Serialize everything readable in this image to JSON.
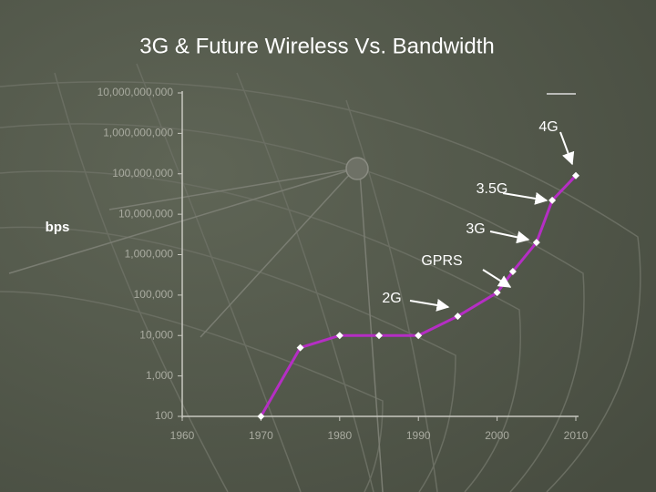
{
  "chart_data": {
    "type": "line",
    "title": "3G & Future Wireless Vs. Bandwidth",
    "ylabel": "bps",
    "x": [
      1970,
      1975,
      1980,
      1985,
      1990,
      1995,
      2000,
      2002,
      2005,
      2007,
      2010
    ],
    "series": [
      {
        "name": "Bandwidth",
        "color": "#b52ec4",
        "values": [
          100,
          5000,
          10000,
          10000,
          10000,
          30000,
          115000,
          384000,
          2000000,
          22000000,
          90000000
        ]
      }
    ],
    "xlim": [
      1960,
      2010
    ],
    "xticks": [
      1960,
      1970,
      1980,
      1990,
      2000,
      2010
    ],
    "ylim": [
      100,
      10000000000
    ],
    "log_scale": true,
    "yticks": [
      {
        "value": 100,
        "label": "100"
      },
      {
        "value": 1000,
        "label": "1,000"
      },
      {
        "value": 10000,
        "label": "10,000"
      },
      {
        "value": 100000,
        "label": "100,000"
      },
      {
        "value": 1000000,
        "label": "1,000,000"
      },
      {
        "value": 10000000,
        "label": "10,000,000"
      },
      {
        "value": 100000000,
        "label": "100,000,000"
      },
      {
        "value": 1000000000,
        "label": "1,000,000,000"
      },
      {
        "value": 10000000000,
        "label": "10,000,000,000"
      }
    ],
    "annotations": [
      "4G",
      "3.5G",
      "3G",
      "GPRS",
      "2G"
    ]
  }
}
